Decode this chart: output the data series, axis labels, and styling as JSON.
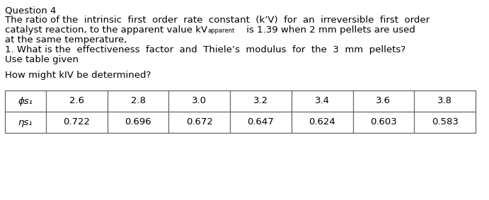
{
  "title": "Question 4",
  "line1": "The ratio of the  intrinsic  first  order  rate  constant  (k’V)  for  an  irreversible  first  order",
  "line2_base": "catalyst reaction, to the apparent value kV",
  "line2_super": "apparent",
  "line2_end": " is 1.39 when 2 mm pellets are used",
  "line3": "at the same temperature,",
  "line4": "1. What is the  effectiveness  factor  and  Thiele’s  modulus  for  the  3  mm  pellets?",
  "line5": "Use table given",
  "line7": "How might kIV be determined?",
  "row1_col0": "ϕs₁",
  "row2_col0": "ηs₁",
  "phi_values": [
    "2.6",
    "2.8",
    "3.0",
    "3.2",
    "3.4",
    "3.6",
    "3.8"
  ],
  "eta_values": [
    "0.722",
    "0.696",
    "0.672",
    "0.647",
    "0.624",
    "0.603",
    "0.583"
  ],
  "bg_color": "#ffffff",
  "text_color": "#000000",
  "font_size": 9.5
}
